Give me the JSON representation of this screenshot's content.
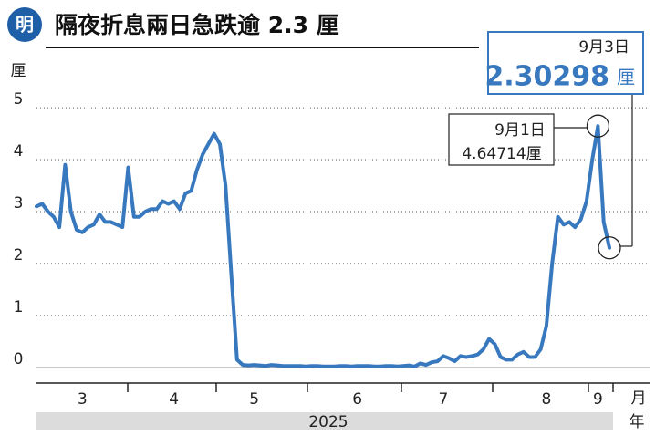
{
  "chart_data": {
    "type": "line",
    "title": "隔夜折息兩日急跌逾 2.3 厘",
    "logo": "明",
    "y_label": "厘",
    "x_unit": "月",
    "year": "2025",
    "year_unit": "年",
    "annotations": [
      {
        "date": "9月3日",
        "value": "2.30298",
        "unit": "厘"
      },
      {
        "date": "9月1日",
        "text": "4.64714厘"
      }
    ],
    "categories": [
      null,
      null,
      null,
      null,
      null,
      null,
      null,
      null,
      "3",
      null,
      null,
      null,
      null,
      null,
      null,
      null,
      null,
      null,
      null,
      null,
      null,
      null,
      null,
      null,
      "4",
      null,
      null,
      null,
      null,
      null,
      null,
      null,
      null,
      null,
      null,
      null,
      null,
      null,
      "5",
      null,
      null,
      null,
      null,
      null,
      null,
      null,
      null,
      null,
      null,
      null,
      null,
      null,
      null,
      null,
      null,
      null,
      "6",
      null,
      null,
      null,
      null,
      null,
      null,
      null,
      null,
      null,
      null,
      null,
      null,
      null,
      null,
      "7",
      null,
      null,
      null,
      null,
      null,
      null,
      null,
      null,
      null,
      null,
      null,
      null,
      null,
      null,
      null,
      null,
      null,
      "8",
      null,
      null,
      null,
      null,
      null,
      null,
      null,
      null,
      "9",
      null,
      null
    ],
    "series": [
      {
        "name": "隔夜折息",
        "color": "#3878be",
        "values": [
          3.1,
          3.15,
          3.0,
          2.9,
          2.7,
          3.9,
          3.0,
          2.65,
          2.6,
          2.7,
          2.75,
          2.95,
          2.8,
          2.8,
          2.75,
          2.7,
          3.85,
          2.9,
          2.9,
          3.0,
          3.05,
          3.05,
          3.2,
          3.15,
          3.2,
          3.05,
          3.35,
          3.4,
          3.8,
          4.1,
          4.3,
          4.5,
          4.3,
          3.5,
          1.8,
          0.15,
          0.05,
          0.04,
          0.05,
          0.04,
          0.03,
          0.05,
          0.04,
          0.03,
          0.03,
          0.03,
          0.03,
          0.02,
          0.03,
          0.03,
          0.02,
          0.02,
          0.02,
          0.03,
          0.03,
          0.02,
          0.03,
          0.03,
          0.03,
          0.02,
          0.02,
          0.03,
          0.03,
          0.02,
          0.03,
          0.04,
          0.02,
          0.08,
          0.05,
          0.1,
          0.12,
          0.22,
          0.18,
          0.12,
          0.22,
          0.2,
          0.22,
          0.25,
          0.35,
          0.55,
          0.45,
          0.2,
          0.15,
          0.15,
          0.25,
          0.3,
          0.2,
          0.2,
          0.35,
          0.8,
          2.0,
          2.9,
          2.75,
          2.8,
          2.7,
          2.85,
          3.2,
          4.0,
          4.64714,
          2.8,
          2.30298
        ]
      }
    ],
    "ylim": [
      -0.3,
      5.3
    ],
    "yticks": [
      0,
      1,
      2,
      3,
      4,
      5
    ],
    "grid": true
  }
}
